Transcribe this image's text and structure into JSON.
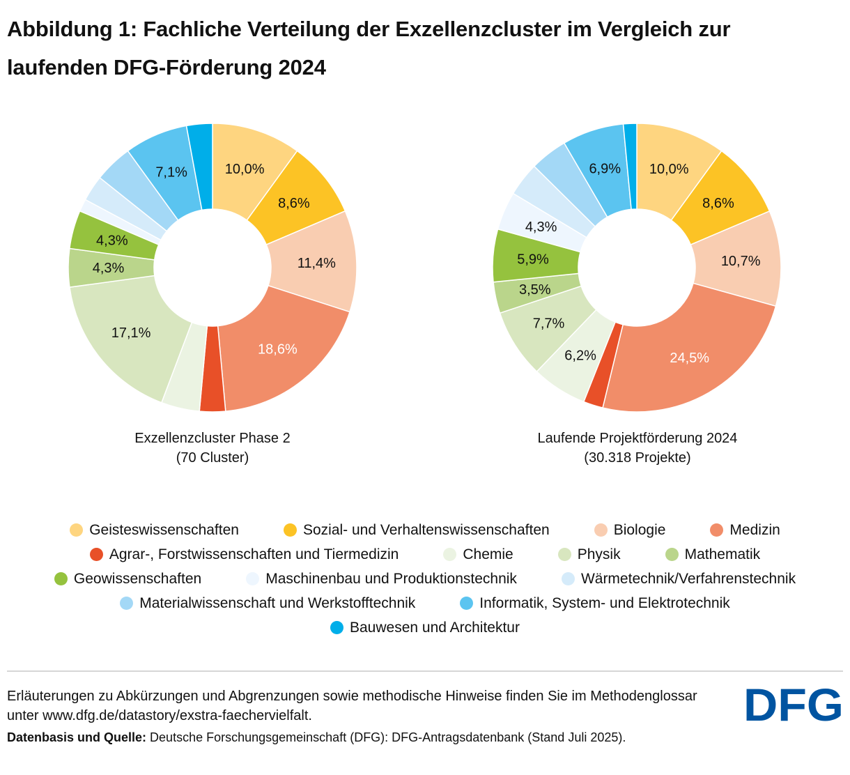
{
  "header": {
    "title_line1": "Abbildung 1: Fachliche Verteilung der Exzellenzcluster im Vergleich zur",
    "title_line2": "laufenden DFG-Förderung 2024"
  },
  "chart_data": {
    "type": "pie",
    "variant": "donut",
    "title": "Abbildung 1: Fachliche Verteilung der Exzellenzcluster im Vergleich zur laufenden DFG-Förderung 2024",
    "categories": [
      "Geisteswissenschaften",
      "Sozial- und Verhaltenswissenschaften",
      "Biologie",
      "Medizin",
      "Agrar-, Forstwissenschaften und Tiermedizin",
      "Chemie",
      "Physik",
      "Mathematik",
      "Geowissenschaften",
      "Maschinenbau und Produktionstechnik",
      "Wärmetechnik/Verfahrenstechnik",
      "Materialwissenschaft und Werkstofftechnik",
      "Informatik, System- und Elektrotechnik",
      "Bauwesen und Architektur"
    ],
    "colors": [
      "#fed580",
      "#fcc325",
      "#f9cdb1",
      "#f18d69",
      "#e85028",
      "#ebf3e2",
      "#d8e6bf",
      "#bad58b",
      "#95c23e",
      "#eef6fe",
      "#d5ebfa",
      "#a3d8f6",
      "#5bc4f0",
      "#00aee9"
    ],
    "series": [
      {
        "name": "Exzellenzcluster Phase 2",
        "subtitle": "(70 Cluster)",
        "values": [
          10.0,
          8.6,
          11.4,
          18.6,
          2.9,
          4.3,
          17.1,
          4.3,
          4.3,
          1.4,
          2.9,
          4.3,
          7.1,
          2.9
        ],
        "labels": [
          "10,0%",
          "8,6%",
          "11,4%",
          "18,6%",
          "",
          "",
          "17,1%",
          "4,3%",
          "4,3%",
          "",
          "",
          "",
          "7,1%",
          ""
        ]
      },
      {
        "name": "Laufende Projektförderung 2024",
        "subtitle": "(30.318 Projekte)",
        "values": [
          10.0,
          8.6,
          10.7,
          24.5,
          2.2,
          6.2,
          7.7,
          3.5,
          5.9,
          4.3,
          3.8,
          4.2,
          6.9,
          1.5
        ],
        "labels": [
          "10,0%",
          "8,6%",
          "10,7%",
          "24,5%",
          "",
          "6,2%",
          "7,7%",
          "3,5%",
          "5,9%",
          "4,3%",
          "",
          "",
          "6,9%",
          ""
        ]
      }
    ],
    "white_label_categories": [
      "Medizin"
    ],
    "start_angle": "12 o'clock",
    "direction": "clockwise",
    "legend_position": "bottom"
  },
  "legend": {
    "rows": [
      [
        0,
        1,
        2,
        3
      ],
      [
        4,
        5,
        6,
        7
      ],
      [
        8,
        9,
        10
      ],
      [
        11,
        12
      ],
      [
        13
      ]
    ]
  },
  "footer": {
    "note": "Erläuterungen zu Abkürzungen und Abgrenzungen sowie methodische Hinweise finden Sie im Methodenglossar unter www.dfg.de/datastory/exstra-faechervielfalt.",
    "source_label": "Datenbasis und Quelle:",
    "source_text": " Deutsche Forschungsgemeinschaft (DFG): DFG-Antragsdatenbank (Stand Juli 2025).",
    "logo_text": "DFG",
    "logo_color": "#0054a1"
  }
}
